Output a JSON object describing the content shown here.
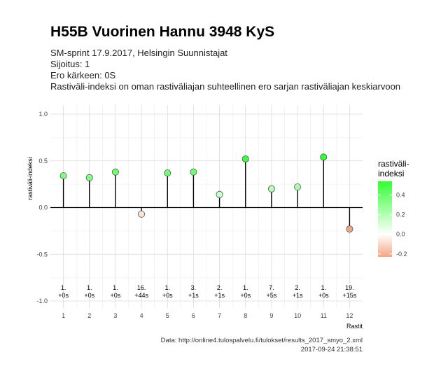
{
  "title": "H55B Vuorinen Hannu 3948 KyS",
  "subtitle_lines": [
    "SM-sprint 17.9.2017, Helsingin Suunnistajat",
    "Sijoitus: 1",
    "Ero kärkeen: 0S",
    "Rastiväli-indeksi on oman rastiväliajan suhteellinen ero sarjan rastiväliajan keskiarvoon"
  ],
  "caption_lines": [
    "Data: http://online4.tulospalvelu.fi/tulokset/results_2017_smyo_2.xml",
    "2017-09-24 21:38:51"
  ],
  "chart_data": {
    "type": "scatter",
    "xlabel": "Rastit",
    "ylabel": "rastiväli-indeksi",
    "xlim": [
      0.5,
      12.5
    ],
    "ylim": [
      -1.0,
      1.0
    ],
    "yticks": [
      -1.0,
      -0.5,
      0.0,
      0.5,
      1.0
    ],
    "ytick_labels": [
      "-1.0",
      "-0.5",
      "0.0",
      "0.5",
      "1.0"
    ],
    "xticks": [
      1,
      2,
      3,
      4,
      5,
      6,
      7,
      8,
      9,
      10,
      11,
      12
    ],
    "grid": true,
    "points": [
      {
        "x": 1,
        "y": 0.34,
        "rank": "1.",
        "diff": "+0s"
      },
      {
        "x": 2,
        "y": 0.32,
        "rank": "1.",
        "diff": "+0s"
      },
      {
        "x": 3,
        "y": 0.38,
        "rank": "1.",
        "diff": "+0s"
      },
      {
        "x": 4,
        "y": -0.07,
        "rank": "16.",
        "diff": "+44s"
      },
      {
        "x": 5,
        "y": 0.37,
        "rank": "1.",
        "diff": "+0s"
      },
      {
        "x": 6,
        "y": 0.38,
        "rank": "3.",
        "diff": "+1s"
      },
      {
        "x": 7,
        "y": 0.14,
        "rank": "2.",
        "diff": "+1s"
      },
      {
        "x": 8,
        "y": 0.52,
        "rank": "1.",
        "diff": "+0s"
      },
      {
        "x": 9,
        "y": 0.2,
        "rank": "7.",
        "diff": "+5s"
      },
      {
        "x": 10,
        "y": 0.22,
        "rank": "2.",
        "diff": "+1s"
      },
      {
        "x": 11,
        "y": 0.54,
        "rank": "1.",
        "diff": "+0s"
      },
      {
        "x": 12,
        "y": -0.23,
        "rank": "19.",
        "diff": "+15s"
      }
    ],
    "legend": {
      "title_lines": [
        "rastiväli-",
        "indeksi"
      ],
      "placement": "right",
      "range": [
        -0.23,
        0.54
      ],
      "ticks": [
        0.4,
        0.2,
        0.0,
        -0.2
      ],
      "tick_labels": [
        "0.4",
        "0.2",
        "0.0",
        "-0.2"
      ],
      "color_high": "#33ff33",
      "color_mid": "#ffffff",
      "color_low": "#f4a582"
    }
  }
}
